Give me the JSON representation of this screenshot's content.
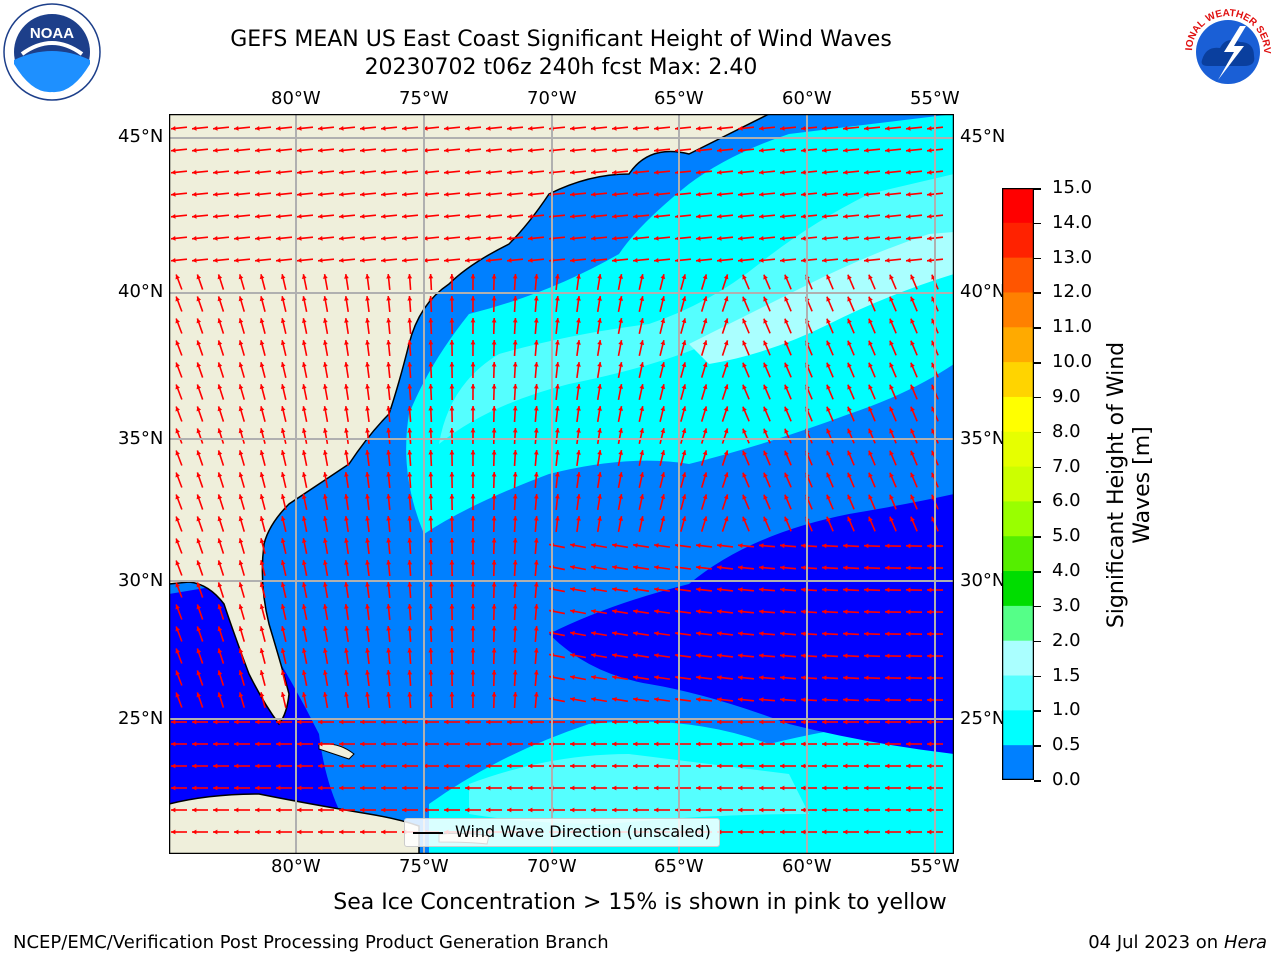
{
  "header": {
    "title_line1": "GEFS MEAN US East Coast Significant Height of Wind Waves",
    "title_line2": "20230702 t06z 240h fcst   Max: 2.40"
  },
  "logos": {
    "left": {
      "text": "NOAA",
      "icon": "noaa-logo"
    },
    "right": {
      "text": "NATIONAL WEATHER SERVICE",
      "icon": "nws-logo"
    }
  },
  "map": {
    "lon_labels": [
      "80°W",
      "75°W",
      "70°W",
      "65°W",
      "60°W",
      "55°W"
    ],
    "lat_labels": [
      "45°N",
      "40°N",
      "35°N",
      "30°N",
      "25°N"
    ],
    "legend_label": "Wind Wave Direction (unscaled)"
  },
  "colorbar": {
    "label": "Significant Height of Wind Waves [m]",
    "ticks": [
      "15.0",
      "14.0",
      "13.0",
      "12.0",
      "11.0",
      "10.0",
      "9.0",
      "8.0",
      "7.0",
      "6.0",
      "5.0",
      "4.0",
      "3.0",
      "2.0",
      "1.5",
      "1.0",
      "0.5",
      "0.0"
    ],
    "colors": [
      "#ff0000",
      "#ff2200",
      "#ff5500",
      "#ff8000",
      "#ffaa00",
      "#ffd400",
      "#ffff00",
      "#e6ff00",
      "#ccff00",
      "#99ff00",
      "#55ee00",
      "#00dd00",
      "#55ff88",
      "#aaffff",
      "#55ffff",
      "#00ffff",
      "#0080ff",
      "#0000ff"
    ]
  },
  "notes": {
    "sea_ice": "Sea Ice Concentration > 15% is shown in pink to yellow"
  },
  "footer": {
    "left": "NCEP/EMC/Verification Post Processing Product Generation Branch",
    "right_date": "04 Jul 2023 on ",
    "right_machine": "Hera"
  }
}
